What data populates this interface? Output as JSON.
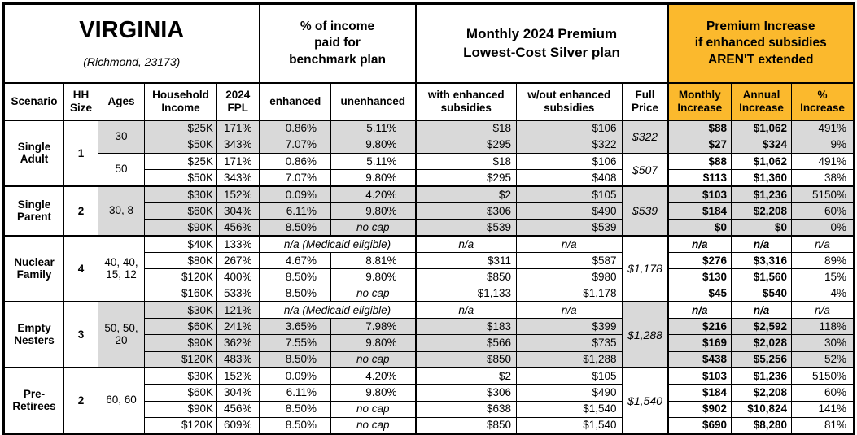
{
  "colors": {
    "header_orange": "#FBB92D",
    "row_gray": "#D9D9D9",
    "border": "#000000"
  },
  "chart_data": {
    "type": "table",
    "title": "VIRGINIA",
    "subtitle": "(Richmond, 23173)",
    "section_headers": {
      "benchmark": "% of income\npaid for\nbenchmark plan",
      "premium": "Monthly 2024 Premium\nLowest-Cost Silver plan",
      "increase": "Premium Increase\nif enhanced subsidies\nAREN'T extended"
    },
    "columns": [
      "Scenario",
      "HH\nSize",
      "Ages",
      "Household\nIncome",
      "2024\nFPL",
      "enhanced",
      "unenhanced",
      "with enhanced\nsubsidies",
      "w/out enhanced\nsubsidies",
      "Full\nPrice",
      "Monthly\nIncrease",
      "Annual\nIncrease",
      "%\nIncrease"
    ],
    "groups": [
      {
        "scenario": "Single\nAdult",
        "hh_size": "1",
        "subgroups": [
          {
            "ages": "30",
            "shade": "gray",
            "full_price": "$322",
            "rows": [
              {
                "income": "$25K",
                "fpl": "171%",
                "enhanced": "0.86%",
                "unenhanced": "5.11%",
                "with": "$18",
                "without": "$106",
                "monthly": "$88",
                "annual": "$1,062",
                "pct": "491%"
              },
              {
                "income": "$50K",
                "fpl": "343%",
                "enhanced": "7.07%",
                "unenhanced": "9.80%",
                "with": "$295",
                "without": "$322",
                "monthly": "$27",
                "annual": "$324",
                "pct": "9%"
              }
            ]
          },
          {
            "ages": "50",
            "shade": "white",
            "full_price": "$507",
            "rows": [
              {
                "income": "$25K",
                "fpl": "171%",
                "enhanced": "0.86%",
                "unenhanced": "5.11%",
                "with": "$18",
                "without": "$106",
                "monthly": "$88",
                "annual": "$1,062",
                "pct": "491%"
              },
              {
                "income": "$50K",
                "fpl": "343%",
                "enhanced": "7.07%",
                "unenhanced": "9.80%",
                "with": "$295",
                "without": "$408",
                "monthly": "$113",
                "annual": "$1,360",
                "pct": "38%"
              }
            ]
          }
        ]
      },
      {
        "scenario": "Single\nParent",
        "hh_size": "2",
        "subgroups": [
          {
            "ages": "30, 8",
            "shade": "gray",
            "full_price": "$539",
            "rows": [
              {
                "income": "$30K",
                "fpl": "152%",
                "enhanced": "0.09%",
                "unenhanced": "4.20%",
                "with": "$2",
                "without": "$105",
                "monthly": "$103",
                "annual": "$1,236",
                "pct": "5150%"
              },
              {
                "income": "$60K",
                "fpl": "304%",
                "enhanced": "6.11%",
                "unenhanced": "9.80%",
                "with": "$306",
                "without": "$490",
                "monthly": "$184",
                "annual": "$2,208",
                "pct": "60%"
              },
              {
                "income": "$90K",
                "fpl": "456%",
                "enhanced": "8.50%",
                "unenhanced": "no cap",
                "with": "$539",
                "without": "$539",
                "monthly": "$0",
                "annual": "$0",
                "pct": "0%"
              }
            ]
          }
        ]
      },
      {
        "scenario": "Nuclear\nFamily",
        "hh_size": "4",
        "subgroups": [
          {
            "ages": "40, 40,\n15, 12",
            "shade": "white",
            "full_price": "$1,178",
            "rows": [
              {
                "income": "$40K",
                "fpl": "133%",
                "medicaid": true,
                "medicaid_label": "n/a (Medicaid eligible)",
                "with": "n/a",
                "without": "n/a",
                "monthly": "n/a",
                "annual": "n/a",
                "pct": "n/a"
              },
              {
                "income": "$80K",
                "fpl": "267%",
                "enhanced": "4.67%",
                "unenhanced": "8.81%",
                "with": "$311",
                "without": "$587",
                "monthly": "$276",
                "annual": "$3,316",
                "pct": "89%"
              },
              {
                "income": "$120K",
                "fpl": "400%",
                "enhanced": "8.50%",
                "unenhanced": "9.80%",
                "with": "$850",
                "without": "$980",
                "monthly": "$130",
                "annual": "$1,560",
                "pct": "15%"
              },
              {
                "income": "$160K",
                "fpl": "533%",
                "enhanced": "8.50%",
                "unenhanced": "no cap",
                "with": "$1,133",
                "without": "$1,178",
                "monthly": "$45",
                "annual": "$540",
                "pct": "4%"
              }
            ]
          }
        ]
      },
      {
        "scenario": "Empty\nNesters",
        "hh_size": "3",
        "subgroups": [
          {
            "ages": "50, 50,\n20",
            "shade": "gray",
            "full_price": "$1,288",
            "rows": [
              {
                "income": "$30K",
                "fpl": "121%",
                "medicaid": true,
                "medicaid_label": "n/a (Medicaid eligible)",
                "with": "n/a",
                "without": "n/a",
                "monthly": "n/a",
                "annual": "n/a",
                "pct": "n/a"
              },
              {
                "income": "$60K",
                "fpl": "241%",
                "enhanced": "3.65%",
                "unenhanced": "7.98%",
                "with": "$183",
                "without": "$399",
                "monthly": "$216",
                "annual": "$2,592",
                "pct": "118%"
              },
              {
                "income": "$90K",
                "fpl": "362%",
                "enhanced": "7.55%",
                "unenhanced": "9.80%",
                "with": "$566",
                "without": "$735",
                "monthly": "$169",
                "annual": "$2,028",
                "pct": "30%"
              },
              {
                "income": "$120K",
                "fpl": "483%",
                "enhanced": "8.50%",
                "unenhanced": "no cap",
                "with": "$850",
                "without": "$1,288",
                "monthly": "$438",
                "annual": "$5,256",
                "pct": "52%"
              }
            ]
          }
        ]
      },
      {
        "scenario": "Pre-\nRetirees",
        "hh_size": "2",
        "subgroups": [
          {
            "ages": "60, 60",
            "shade": "white",
            "full_price": "$1,540",
            "rows": [
              {
                "income": "$30K",
                "fpl": "152%",
                "enhanced": "0.09%",
                "unenhanced": "4.20%",
                "with": "$2",
                "without": "$105",
                "monthly": "$103",
                "annual": "$1,236",
                "pct": "5150%"
              },
              {
                "income": "$60K",
                "fpl": "304%",
                "enhanced": "6.11%",
                "unenhanced": "9.80%",
                "with": "$306",
                "without": "$490",
                "monthly": "$184",
                "annual": "$2,208",
                "pct": "60%"
              },
              {
                "income": "$90K",
                "fpl": "456%",
                "enhanced": "8.50%",
                "unenhanced": "no cap",
                "with": "$638",
                "without": "$1,540",
                "monthly": "$902",
                "annual": "$10,824",
                "pct": "141%"
              },
              {
                "income": "$120K",
                "fpl": "609%",
                "enhanced": "8.50%",
                "unenhanced": "no cap",
                "with": "$850",
                "without": "$1,540",
                "monthly": "$690",
                "annual": "$8,280",
                "pct": "81%"
              }
            ]
          }
        ]
      }
    ]
  }
}
